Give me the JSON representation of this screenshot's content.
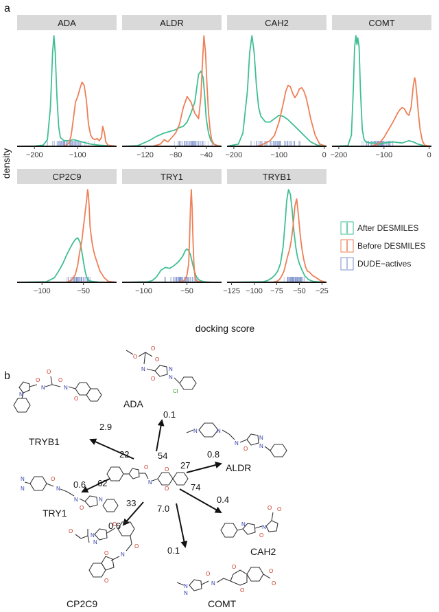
{
  "panel_a_letter": "a",
  "panel_b_letter": "b",
  "colors": {
    "after": "#3fbf93",
    "before": "#ee7f57",
    "actives": "#7e92cc",
    "strip": "#d9d9d9",
    "arrow": "#111111"
  },
  "legend": {
    "items": [
      {
        "key": "after",
        "label": "After DESMILES"
      },
      {
        "key": "before",
        "label": "Before DESMILES"
      },
      {
        "key": "actives",
        "label": "DUDE−actives"
      }
    ]
  },
  "chart_data": {
    "type": "area",
    "ylabel": "density",
    "xlabel": "docking score",
    "panels": [
      {
        "name": "ADA",
        "xlim": [
          -240,
          -10
        ],
        "ticks": [
          -200,
          -100
        ],
        "tick_labels": [
          "−200",
          "−100"
        ],
        "series": [
          {
            "name": "After DESMILES",
            "key": "after",
            "x": [
              -240,
              -200,
              -180,
              -170,
              -163,
              -158,
              -155,
              -152,
              -148,
              -144,
              -140,
              -135,
              -130,
              -120,
              -110,
              -100,
              -90,
              -80,
              -70,
              -50,
              -30,
              -10
            ],
            "y": [
              0,
              0.002,
              0.01,
              0.06,
              0.35,
              0.85,
              1.0,
              0.85,
              0.45,
              0.18,
              0.08,
              0.06,
              0.05,
              0.05,
              0.06,
              0.05,
              0.04,
              0.03,
              0.02,
              0.01,
              0.005,
              0
            ]
          },
          {
            "name": "Before DESMILES",
            "key": "before",
            "x": [
              -240,
              -130,
              -120,
              -115,
              -110,
              -105,
              -100,
              -95,
              -90,
              -85,
              -80,
              -75,
              -70,
              -65,
              -60,
              -55,
              -50,
              -45,
              -42,
              -38,
              -35,
              -30,
              -20,
              -10
            ],
            "y": [
              0,
              0,
              0.03,
              0.1,
              0.25,
              0.4,
              0.45,
              0.52,
              0.58,
              0.55,
              0.42,
              0.2,
              0.1,
              0.07,
              0.06,
              0.07,
              0.05,
              0.08,
              0.18,
              0.12,
              0.04,
              0.01,
              0.005,
              0
            ]
          }
        ],
        "actives_range": [
          -185,
          -50
        ]
      },
      {
        "name": "ALDR",
        "xlim": [
          -150,
          -20
        ],
        "ticks": [
          -120,
          -80,
          -40
        ],
        "tick_labels": [
          "−120",
          "−80",
          "−40"
        ],
        "series": [
          {
            "name": "After DESMILES",
            "key": "after",
            "x": [
              -150,
              -130,
              -115,
              -105,
              -95,
              -85,
              -80,
              -75,
              -70,
              -65,
              -60,
              -55,
              -52,
              -50,
              -47,
              -44,
              -42,
              -40,
              -37,
              -34,
              -30,
              -25,
              -20
            ],
            "y": [
              0,
              0.005,
              0.05,
              0.09,
              0.12,
              0.14,
              0.15,
              0.17,
              0.18,
              0.22,
              0.3,
              0.4,
              0.55,
              0.65,
              0.68,
              0.62,
              0.45,
              0.25,
              0.12,
              0.05,
              0.02,
              0.005,
              0
            ]
          },
          {
            "name": "Before DESMILES",
            "key": "before",
            "x": [
              -150,
              -110,
              -100,
              -95,
              -90,
              -85,
              -80,
              -75,
              -70,
              -65,
              -60,
              -55,
              -50,
              -47,
              -45,
              -43,
              -41,
              -39,
              -37,
              -35,
              -33,
              -30,
              -25,
              -20
            ],
            "y": [
              0,
              0,
              0.02,
              0.06,
              0.04,
              0.08,
              0.12,
              0.2,
              0.35,
              0.45,
              0.4,
              0.3,
              0.25,
              0.45,
              0.75,
              1.0,
              0.85,
              0.55,
              0.3,
              0.15,
              0.06,
              0.02,
              0.005,
              0
            ]
          }
        ],
        "actives_range": [
          -85,
          -30
        ]
      },
      {
        "name": "CAH2",
        "xlim": [
          -215,
          5
        ],
        "ticks": [
          -200,
          -100,
          0
        ],
        "tick_labels": [
          "−200",
          "−100",
          "0"
        ],
        "series": [
          {
            "name": "After DESMILES",
            "key": "after",
            "x": [
              -215,
              -190,
              -180,
              -170,
              -165,
              -160,
              -155,
              -150,
              -145,
              -140,
              -130,
              -120,
              -110,
              -100,
              -90,
              -80,
              -70,
              -60,
              -50,
              -40,
              -30,
              -15,
              5
            ],
            "y": [
              0,
              0.02,
              0.12,
              0.5,
              0.85,
              1.0,
              0.85,
              0.55,
              0.35,
              0.27,
              0.22,
              0.22,
              0.25,
              0.28,
              0.27,
              0.24,
              0.2,
              0.16,
              0.12,
              0.08,
              0.04,
              0.01,
              0
            ]
          },
          {
            "name": "Before DESMILES",
            "key": "before",
            "x": [
              -215,
              -150,
              -140,
              -130,
              -120,
              -110,
              -100,
              -90,
              -85,
              -80,
              -75,
              -70,
              -65,
              -60,
              -55,
              -50,
              -45,
              -40,
              -35,
              -30,
              -20,
              -10,
              5
            ],
            "y": [
              0,
              0,
              0.01,
              0.03,
              0.05,
              0.1,
              0.22,
              0.4,
              0.5,
              0.55,
              0.54,
              0.48,
              0.44,
              0.47,
              0.52,
              0.53,
              0.5,
              0.44,
              0.35,
              0.25,
              0.1,
              0.02,
              0
            ]
          }
        ],
        "actives_range": [
          -180,
          -25
        ]
      },
      {
        "name": "COMT",
        "xlim": [
          -215,
          5
        ],
        "ticks": [
          -200,
          -100,
          0
        ],
        "tick_labels": [
          "−200",
          "−100",
          "0"
        ],
        "series": [
          {
            "name": "After DESMILES",
            "key": "after",
            "x": [
              -215,
              -180,
              -172,
              -168,
              -165,
              -162,
              -160,
              -158,
              -155,
              -152,
              -148,
              -144,
              -140,
              -130,
              -120,
              -110,
              -100,
              -80,
              -60,
              -45,
              -35,
              -25,
              -10,
              5
            ],
            "y": [
              0,
              0.005,
              0.1,
              0.5,
              0.9,
              1.0,
              0.92,
              0.98,
              0.9,
              0.5,
              0.15,
              0.06,
              0.04,
              0.03,
              0.03,
              0.02,
              0.03,
              0.04,
              0.03,
              0.05,
              0.04,
              0.02,
              0.005,
              0
            ]
          },
          {
            "name": "Before DESMILES",
            "key": "before",
            "x": [
              -215,
              -130,
              -120,
              -110,
              -100,
              -90,
              -80,
              -75,
              -70,
              -65,
              -60,
              -55,
              -50,
              -45,
              -40,
              -35,
              -32,
              -30,
              -27,
              -24,
              -20,
              -15,
              -10,
              5
            ],
            "y": [
              0,
              0,
              0.01,
              0.03,
              0.08,
              0.15,
              0.22,
              0.26,
              0.3,
              0.33,
              0.35,
              0.34,
              0.3,
              0.28,
              0.35,
              0.55,
              0.62,
              0.58,
              0.45,
              0.3,
              0.15,
              0.05,
              0.01,
              0
            ]
          }
        ],
        "actives_range": [
          -160,
          -60
        ]
      },
      {
        "name": "CP2C9",
        "xlim": [
          -130,
          -10
        ],
        "ticks": [
          -100,
          -50
        ],
        "tick_labels": [
          "−100",
          "−50"
        ],
        "series": [
          {
            "name": "After DESMILES",
            "key": "after",
            "x": [
              -130,
              -95,
              -85,
              -80,
              -75,
              -70,
              -66,
              -63,
              -60,
              -57,
              -54,
              -52,
              -50,
              -48,
              -46,
              -44,
              -40,
              -35,
              -30,
              -20,
              -10
            ],
            "y": [
              0,
              0.005,
              0.05,
              0.12,
              0.2,
              0.3,
              0.37,
              0.42,
              0.46,
              0.48,
              0.43,
              0.33,
              0.22,
              0.12,
              0.05,
              0.02,
              0.01,
              0.005,
              0,
              0,
              0
            ]
          },
          {
            "name": "Before DESMILES",
            "key": "before",
            "x": [
              -130,
              -70,
              -65,
              -60,
              -57,
              -55,
              -52,
              -50,
              -48,
              -46,
              -45,
              -44,
              -43,
              -42,
              -40,
              -38,
              -36,
              -33,
              -30,
              -25,
              -20,
              -10
            ],
            "y": [
              0,
              0,
              0.02,
              0.08,
              0.18,
              0.3,
              0.45,
              0.6,
              0.75,
              0.9,
              1.0,
              0.95,
              0.8,
              0.6,
              0.45,
              0.35,
              0.28,
              0.2,
              0.12,
              0.05,
              0.01,
              0
            ]
          }
        ],
        "actives_range": [
          -75,
          -35
        ]
      },
      {
        "name": "TRY1",
        "xlim": [
          -125,
          -10
        ],
        "ticks": [
          -100,
          -50
        ],
        "tick_labels": [
          "−100",
          "−50"
        ],
        "series": [
          {
            "name": "After DESMILES",
            "key": "after",
            "x": [
              -125,
              -95,
              -90,
              -85,
              -80,
              -75,
              -70,
              -65,
              -60,
              -55,
              -52,
              -50,
              -48,
              -46,
              -44,
              -42,
              -40,
              -38,
              -35,
              -30,
              -20,
              -10
            ],
            "y": [
              0,
              0.005,
              0.02,
              0.06,
              0.13,
              0.16,
              0.15,
              0.18,
              0.22,
              0.28,
              0.34,
              0.36,
              0.34,
              0.3,
              0.22,
              0.14,
              0.08,
              0.04,
              0.02,
              0.005,
              0,
              0
            ]
          },
          {
            "name": "Before DESMILES",
            "key": "before",
            "x": [
              -125,
              -60,
              -55,
              -52,
              -50,
              -48,
              -47,
              -46,
              -45,
              -44,
              -43,
              -42,
              -41,
              -40,
              -38,
              -35,
              -30,
              -20,
              -10
            ],
            "y": [
              0,
              0,
              0.01,
              0.03,
              0.08,
              0.2,
              0.45,
              0.8,
              1.0,
              0.8,
              0.45,
              0.2,
              0.08,
              0.03,
              0.01,
              0.005,
              0,
              0,
              0
            ]
          }
        ],
        "actives_range": [
          -80,
          -30
        ]
      },
      {
        "name": "TRYB1",
        "xlim": [
          -130,
          -20
        ],
        "ticks": [
          -125,
          -100,
          -75,
          -50,
          -25
        ],
        "tick_labels": [
          "−125",
          "−100",
          "−75",
          "−50",
          "−25"
        ],
        "series": [
          {
            "name": "After DESMILES",
            "key": "after",
            "x": [
              -130,
              -90,
              -85,
              -80,
              -77,
              -74,
              -71,
              -68,
              -66,
              -64,
              -62,
              -60,
              -58,
              -56,
              -54,
              -52,
              -50,
              -47,
              -44,
              -40,
              -35,
              -30,
              -20
            ],
            "y": [
              0,
              0.005,
              0.02,
              0.05,
              0.08,
              0.12,
              0.2,
              0.38,
              0.62,
              0.88,
              1.0,
              0.95,
              0.78,
              0.55,
              0.38,
              0.27,
              0.2,
              0.13,
              0.07,
              0.03,
              0.01,
              0.005,
              0
            ]
          },
          {
            "name": "Before DESMILES",
            "key": "before",
            "x": [
              -130,
              -80,
              -75,
              -72,
              -70,
              -67,
              -65,
              -63,
              -61,
              -59,
              -57,
              -55,
              -53,
              -51,
              -49,
              -47,
              -45,
              -43,
              -41,
              -39,
              -37,
              -35,
              -33,
              -30,
              -27,
              -24,
              -20
            ],
            "y": [
              0,
              0,
              0.01,
              0.03,
              0.06,
              0.12,
              0.2,
              0.28,
              0.35,
              0.45,
              0.6,
              0.82,
              0.9,
              0.72,
              0.5,
              0.35,
              0.24,
              0.16,
              0.12,
              0.11,
              0.09,
              0.07,
              0.06,
              0.04,
              0.02,
              0.01,
              0
            ]
          }
        ],
        "actives_range": [
          -70,
          -40
        ]
      }
    ]
  },
  "network": {
    "center": {
      "name": "seed-molecule"
    },
    "spokes": [
      {
        "target": "TRYB1",
        "similarity": "22",
        "score": "2.9"
      },
      {
        "target": "ADA",
        "similarity": "54",
        "score": "0.1"
      },
      {
        "target": "ALDR",
        "similarity": "27",
        "score": "0.8"
      },
      {
        "target": "CAH2",
        "similarity": "74",
        "score": "0.4"
      },
      {
        "target": "COMT",
        "similarity": "7.0",
        "score": "0.1"
      },
      {
        "target": "CP2C9",
        "similarity": "33",
        "score": "0.6"
      },
      {
        "target": "TRY1",
        "similarity": "62",
        "score": "0.6"
      }
    ]
  }
}
